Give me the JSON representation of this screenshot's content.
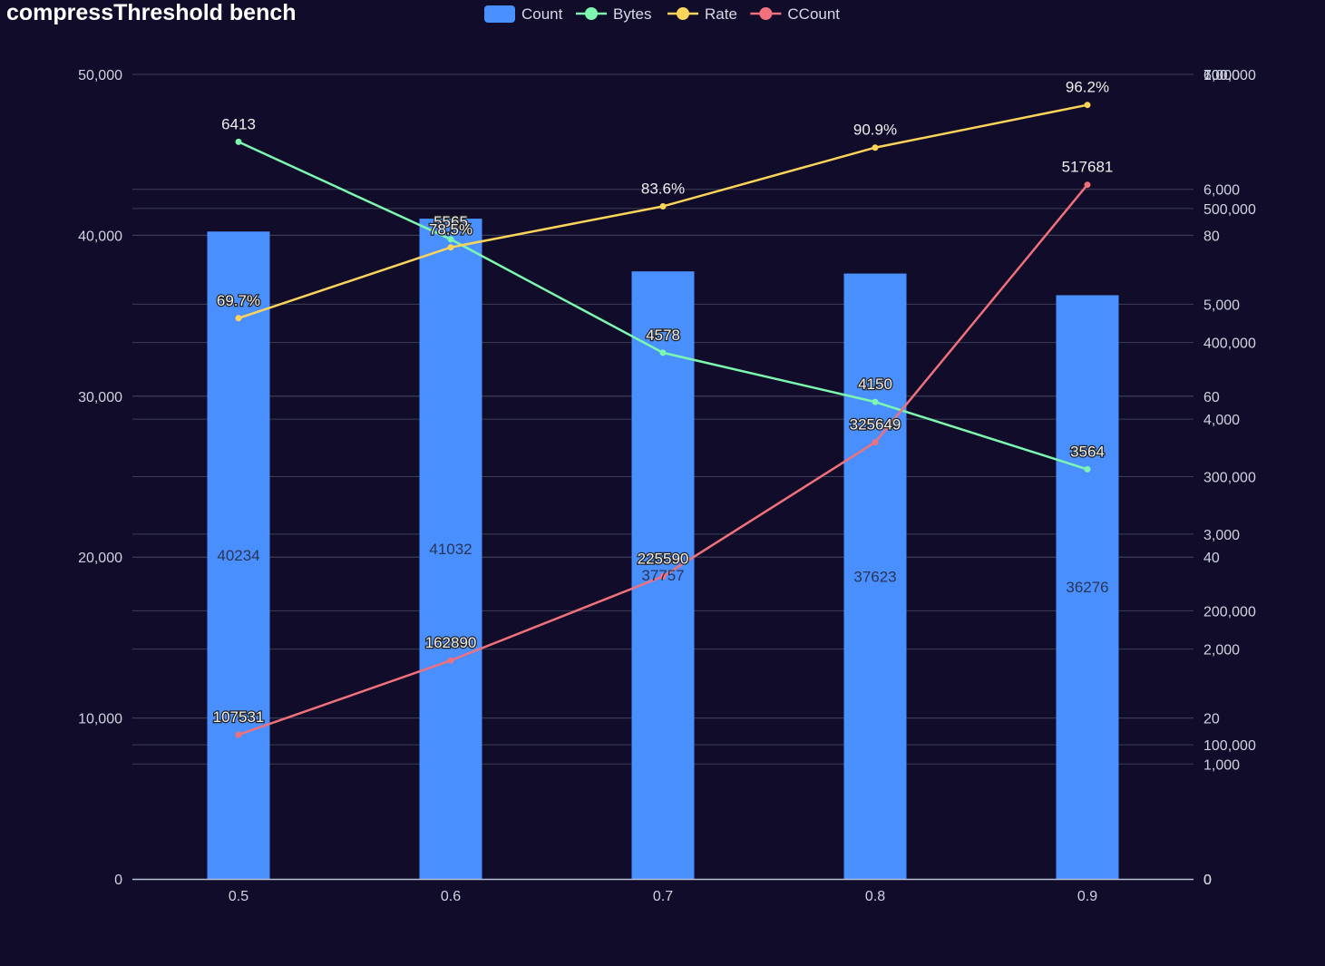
{
  "chart_data": {
    "type": "bar",
    "title": "compressThreshold bench",
    "categories": [
      "0.5",
      "0.6",
      "0.7",
      "0.8",
      "0.9"
    ],
    "series": [
      {
        "name": "Count",
        "type": "bar",
        "axis": "left",
        "color": "#4a8ffe",
        "values": [
          40234,
          41032,
          37757,
          37623,
          36276
        ]
      },
      {
        "name": "Bytes",
        "type": "line",
        "axis": "right-bytes",
        "color": "#7df7b0",
        "values": [
          6413,
          5565,
          4578,
          4150,
          3564
        ]
      },
      {
        "name": "Rate",
        "type": "line",
        "axis": "right-rate",
        "color": "#fcd45a",
        "values": [
          69.7,
          78.5,
          83.6,
          90.9,
          96.2
        ],
        "label_suffix": "%"
      },
      {
        "name": "CCount",
        "type": "line",
        "axis": "right-ccount",
        "color": "#f0717b",
        "values": [
          107531,
          162890,
          225590,
          325649,
          517681
        ]
      }
    ],
    "axes": {
      "left": {
        "min": 0,
        "max": 50000,
        "ticks": [
          0,
          10000,
          20000,
          30000,
          40000,
          50000
        ]
      },
      "right-bytes": {
        "min": 0,
        "max": 7000,
        "ticks": [
          0,
          1000,
          2000,
          3000,
          4000,
          5000,
          6000,
          7000
        ]
      },
      "right-rate": {
        "min": 0,
        "max": 100,
        "ticks": [
          0,
          20,
          40,
          60,
          80,
          100
        ]
      },
      "right-ccount": {
        "min": 0,
        "max": 600000,
        "ticks": [
          0,
          100000,
          200000,
          300000,
          400000,
          500000,
          600000
        ]
      }
    },
    "legend_position": "top-center",
    "grid": true
  },
  "colors": {
    "background": "#100c2a",
    "grid": "#3b3f55",
    "axis_line": "#b9bfd3"
  }
}
